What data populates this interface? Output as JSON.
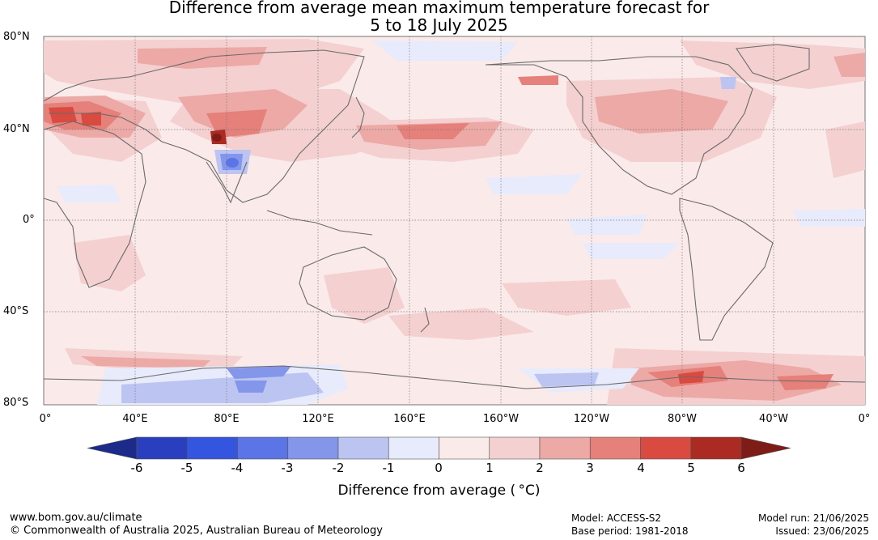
{
  "title": {
    "line1": "Difference from average mean maximum temperature forecast for",
    "line2": "5 to 18 July 2025"
  },
  "map": {
    "lat_labels": [
      "80°N",
      "40°N",
      "0°",
      "40°S",
      "80°S"
    ],
    "lon_labels": [
      "0°",
      "40°E",
      "80°E",
      "120°E",
      "160°E",
      "160°W",
      "120°W",
      "80°W",
      "40°W",
      "0°"
    ],
    "ocean_color": "#fbeaea",
    "gridline_color": "#777777"
  },
  "colorbar": {
    "ticks": [
      "-6",
      "-5",
      "-4",
      "-3",
      "-2",
      "-1",
      "0",
      "1",
      "2",
      "3",
      "4",
      "5",
      "6"
    ],
    "colors": [
      "#1c2a8a",
      "#2a3fbf",
      "#3355e0",
      "#5b74e6",
      "#8396ea",
      "#bcc4f2",
      "#e8ebfb",
      "#fbeaea",
      "#f4d0d0",
      "#eca9a6",
      "#e5807a",
      "#d94a40",
      "#ab2a22",
      "#7e1d18"
    ],
    "title": "Difference from average ( °C)"
  },
  "footer": {
    "left_line1": "www.bom.gov.au/climate",
    "left_line2": "© Commonwealth of Australia 2025, Australian Bureau of Meteorology",
    "mid_line1": "Model: ACCESS-S2",
    "mid_line2": "Base period: 1981-2018",
    "right_line1": "Model run: 21/06/2025",
    "right_line2": "Issued: 23/06/2025"
  }
}
